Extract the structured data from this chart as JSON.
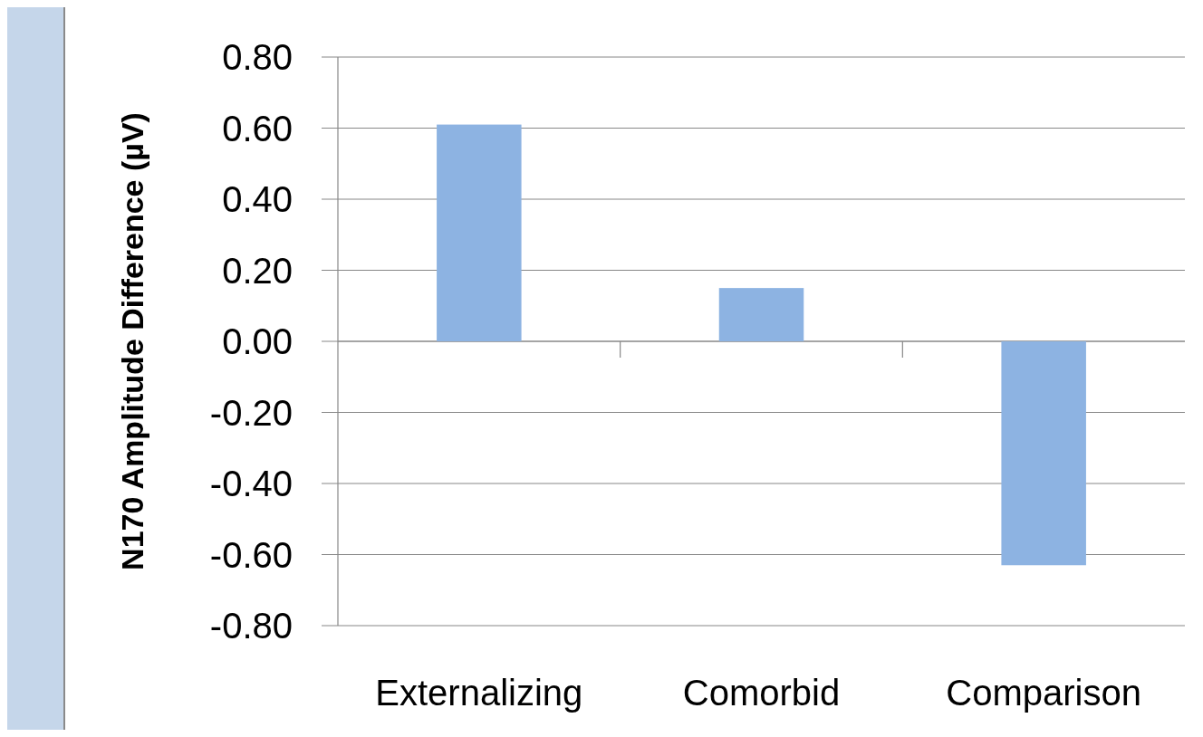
{
  "chart_data": {
    "type": "bar",
    "ylabel": "N170 Amplitude Difference (µV)",
    "categories": [
      "Externalizing",
      "Comorbid",
      "Comparison"
    ],
    "values": [
      0.61,
      0.15,
      -0.63
    ],
    "color": "#8db3e2",
    "ylim": [
      -0.8,
      0.8
    ],
    "yticks": [
      {
        "value": -0.8,
        "label": "-0.80"
      },
      {
        "value": -0.6,
        "label": "-0.60"
      },
      {
        "value": -0.4,
        "label": "-0.40"
      },
      {
        "value": -0.2,
        "label": "-0.20"
      },
      {
        "value": 0,
        "label": "0.00"
      },
      {
        "value": 0.2,
        "label": "0.20"
      },
      {
        "value": 0.4,
        "label": "0.40"
      },
      {
        "value": 0.6,
        "label": "0.60"
      },
      {
        "value": 0.8,
        "label": "0.80"
      }
    ],
    "grid": "y"
  }
}
